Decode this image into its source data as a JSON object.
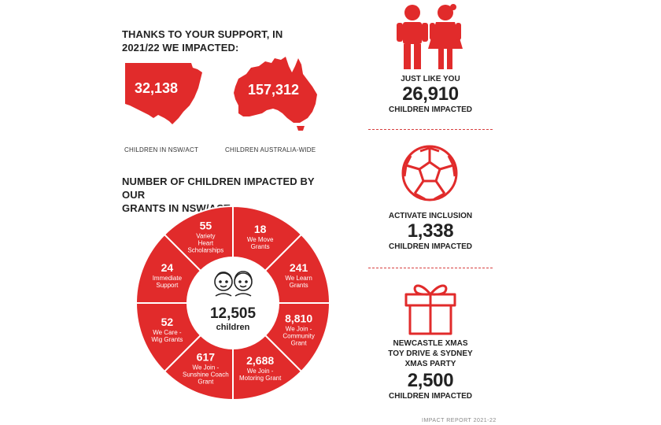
{
  "colors": {
    "accent": "#e12b2b",
    "text": "#222222",
    "divider": "#d84040"
  },
  "support": {
    "heading_line1": "THANKS TO YOUR SUPPORT, IN",
    "heading_line2": "2021/22 WE IMPACTED:",
    "nsw": {
      "value": "32,138",
      "caption": "CHILDREN IN NSW/ACT",
      "icon": "nsw-map-icon"
    },
    "aus": {
      "value": "157,312",
      "caption": "CHILDREN AUSTRALIA-WIDE",
      "icon": "australia-map-icon"
    }
  },
  "grants": {
    "heading_line1": "NUMBER OF CHILDREN IMPACTED BY OUR",
    "heading_line2": "GRANTS IN NSW/ACT",
    "center": {
      "value": "12,505",
      "label": "children",
      "icon": "two-children-icon"
    },
    "segments": [
      {
        "value": "18",
        "lines": [
          "We Move",
          "Grants"
        ]
      },
      {
        "value": "241",
        "lines": [
          "We Learn",
          "Grants"
        ]
      },
      {
        "value": "8,810",
        "lines": [
          "We Join -",
          "Community",
          "Grant"
        ]
      },
      {
        "value": "2,688",
        "lines": [
          "We Join -",
          "Motoring Grant"
        ]
      },
      {
        "value": "617",
        "lines": [
          "We Join -",
          "Sunshine Coach",
          "Grant"
        ]
      },
      {
        "value": "52",
        "lines": [
          "We Care -",
          "Wig Grants"
        ]
      },
      {
        "value": "24",
        "lines": [
          "Immediate",
          "Support"
        ]
      },
      {
        "value": "55",
        "lines": [
          "Variety",
          "Heart",
          "Scholarships"
        ]
      }
    ]
  },
  "stats": [
    {
      "icon": "boy-and-girl-icon",
      "label_lines": [
        "JUST LIKE YOU"
      ],
      "value": "26,910",
      "sub": "CHILDREN IMPACTED"
    },
    {
      "icon": "soccer-ball-icon",
      "label_lines": [
        "ACTIVATE INCLUSION"
      ],
      "value": "1,338",
      "sub": "CHILDREN IMPACTED"
    },
    {
      "icon": "gift-box-icon",
      "label_lines": [
        "NEWCASTLE XMAS",
        "TOY DRIVE & SYDNEY",
        "XMAS PARTY"
      ],
      "value": "2,500",
      "sub": "CHILDREN IMPACTED"
    }
  ],
  "footer": "IMPACT REPORT 2021-22"
}
